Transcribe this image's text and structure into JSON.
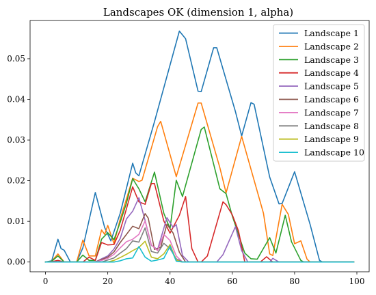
{
  "chart_data": {
    "type": "line",
    "title": "Landscapes OK (dimension 1, alpha)",
    "xlabel": "",
    "ylabel": "",
    "xlim": [
      -4.95,
      103.95
    ],
    "ylim": [
      -0.0024,
      0.0594
    ],
    "x_ticks": [
      0,
      20,
      40,
      60,
      80,
      100
    ],
    "x_tick_labels": [
      "0",
      "20",
      "40",
      "60",
      "80",
      "100"
    ],
    "y_ticks": [
      0,
      0.01,
      0.02,
      0.03,
      0.04,
      0.05
    ],
    "y_tick_labels": [
      "0.00",
      "0.01",
      "0.02",
      "0.03",
      "0.04",
      "0.05"
    ],
    "grid": false,
    "legend_position": "top-right",
    "series": [
      {
        "name": "Landscape 1",
        "color": "#1f77b4",
        "points": [
          [
            0,
            0
          ],
          [
            2,
            0.0003
          ],
          [
            4,
            0.0056
          ],
          [
            5,
            0.0033
          ],
          [
            6,
            0.0029
          ],
          [
            8,
            0
          ],
          [
            10,
            0
          ],
          [
            12,
            0.0035
          ],
          [
            16,
            0.0171
          ],
          [
            19,
            0.0085
          ],
          [
            21,
            0.0052
          ],
          [
            24,
            0.012
          ],
          [
            28,
            0.0243
          ],
          [
            29,
            0.0219
          ],
          [
            30,
            0.0212
          ],
          [
            35,
            0.0345
          ],
          [
            43,
            0.0568
          ],
          [
            45,
            0.0549
          ],
          [
            49,
            0.042
          ],
          [
            50,
            0.0419
          ],
          [
            54,
            0.0527
          ],
          [
            55,
            0.0527
          ],
          [
            61,
            0.037
          ],
          [
            63,
            0.031
          ],
          [
            66,
            0.0392
          ],
          [
            67,
            0.0388
          ],
          [
            72,
            0.0209
          ],
          [
            75,
            0.0143
          ],
          [
            76,
            0.0144
          ],
          [
            80,
            0.0222
          ],
          [
            85,
            0.0092
          ],
          [
            88,
            0.0004
          ],
          [
            89,
            0
          ],
          [
            99,
            0
          ]
        ]
      },
      {
        "name": "Landscape 2",
        "color": "#ff7f0e",
        "points": [
          [
            0,
            0
          ],
          [
            2,
            0.0002
          ],
          [
            4,
            0.002
          ],
          [
            6,
            0
          ],
          [
            10,
            0
          ],
          [
            12,
            0.0054
          ],
          [
            14,
            0.0015
          ],
          [
            16,
            0.0015
          ],
          [
            18,
            0.0079
          ],
          [
            19,
            0.0068
          ],
          [
            20,
            0.009
          ],
          [
            22,
            0.0045
          ],
          [
            24,
            0.0106
          ],
          [
            26,
            0.0155
          ],
          [
            28,
            0.0206
          ],
          [
            30,
            0.0198
          ],
          [
            31,
            0.0201
          ],
          [
            36,
            0.0333
          ],
          [
            37,
            0.0346
          ],
          [
            42,
            0.021
          ],
          [
            49,
            0.0391
          ],
          [
            50,
            0.0391
          ],
          [
            56,
            0.0232
          ],
          [
            58,
            0.017
          ],
          [
            63,
            0.0309
          ],
          [
            70,
            0.012
          ],
          [
            72,
            0.002
          ],
          [
            73,
            0.0016
          ],
          [
            76,
            0.0142
          ],
          [
            78,
            0.0117
          ],
          [
            80,
            0.0045
          ],
          [
            82,
            0.0052
          ],
          [
            84,
            0.0007
          ],
          [
            85,
            0
          ],
          [
            99,
            0
          ]
        ]
      },
      {
        "name": "Landscape 3",
        "color": "#2ca02c",
        "points": [
          [
            0,
            0
          ],
          [
            2,
            0.0002
          ],
          [
            4,
            0.0015
          ],
          [
            6,
            0
          ],
          [
            10,
            0
          ],
          [
            12,
            0.0017
          ],
          [
            14,
            0.0004
          ],
          [
            16,
            0.0004
          ],
          [
            18,
            0.0056
          ],
          [
            20,
            0.0072
          ],
          [
            22,
            0.0055
          ],
          [
            24,
            0.0098
          ],
          [
            26,
            0.0145
          ],
          [
            28,
            0.0205
          ],
          [
            30,
            0.018
          ],
          [
            32,
            0.0148
          ],
          [
            35,
            0.0221
          ],
          [
            38,
            0.012
          ],
          [
            40,
            0.0082
          ],
          [
            42,
            0.0201
          ],
          [
            44,
            0.0161
          ],
          [
            50,
            0.0326
          ],
          [
            51,
            0.0332
          ],
          [
            56,
            0.018
          ],
          [
            58,
            0.0168
          ],
          [
            60,
            0.0113
          ],
          [
            64,
            0.0022
          ],
          [
            66,
            0.0008
          ],
          [
            68,
            0.0007
          ],
          [
            72,
            0.006
          ],
          [
            74,
            0.0022
          ],
          [
            77,
            0.0115
          ],
          [
            79,
            0.005
          ],
          [
            82,
            0.0004
          ],
          [
            83,
            0
          ],
          [
            99,
            0
          ]
        ]
      },
      {
        "name": "Landscape 4",
        "color": "#d62728",
        "points": [
          [
            0,
            0
          ],
          [
            2,
            0.0001
          ],
          [
            4,
            0.0004
          ],
          [
            6,
            0
          ],
          [
            12,
            0
          ],
          [
            14,
            0.0012
          ],
          [
            16,
            0.0004
          ],
          [
            18,
            0.0048
          ],
          [
            20,
            0.0042
          ],
          [
            22,
            0.0043
          ],
          [
            24,
            0.0078
          ],
          [
            26,
            0.0131
          ],
          [
            28,
            0.0185
          ],
          [
            30,
            0.0148
          ],
          [
            32,
            0.0142
          ],
          [
            34,
            0.0193
          ],
          [
            35,
            0.0193
          ],
          [
            38,
            0.0101
          ],
          [
            40,
            0.0071
          ],
          [
            43,
            0.0115
          ],
          [
            45,
            0.0161
          ],
          [
            47,
            0.0033
          ],
          [
            49,
            0
          ],
          [
            50,
            0
          ],
          [
            52,
            0.0015
          ],
          [
            57,
            0.0148
          ],
          [
            58,
            0.0141
          ],
          [
            60,
            0.0116
          ],
          [
            62,
            0.0076
          ],
          [
            64,
            0
          ],
          [
            69,
            0
          ],
          [
            71,
            0.0013
          ],
          [
            73,
            0
          ],
          [
            99,
            0
          ]
        ]
      },
      {
        "name": "Landscape 5",
        "color": "#9467bd",
        "points": [
          [
            0,
            0
          ],
          [
            4,
            0.0001
          ],
          [
            6,
            0
          ],
          [
            16,
            0
          ],
          [
            18,
            0.0008
          ],
          [
            20,
            0.0015
          ],
          [
            22,
            0.0032
          ],
          [
            24,
            0.0058
          ],
          [
            26,
            0.0106
          ],
          [
            28,
            0.0125
          ],
          [
            30,
            0.0158
          ],
          [
            32,
            0.0102
          ],
          [
            34,
            0.0041
          ],
          [
            36,
            0.0031
          ],
          [
            39,
            0.0109
          ],
          [
            41,
            0.0085
          ],
          [
            42,
            0.0092
          ],
          [
            44,
            0.0016
          ],
          [
            46,
            0
          ],
          [
            55,
            0
          ],
          [
            57,
            0.0018
          ],
          [
            61,
            0.0087
          ],
          [
            63,
            0.0028
          ],
          [
            65,
            0
          ],
          [
            72,
            0
          ],
          [
            73,
            0.0009
          ],
          [
            75,
            0
          ],
          [
            99,
            0
          ]
        ]
      },
      {
        "name": "Landscape 6",
        "color": "#8c564b",
        "points": [
          [
            0,
            0
          ],
          [
            16,
            0
          ],
          [
            18,
            0.0006
          ],
          [
            20,
            0.0012
          ],
          [
            22,
            0.0025
          ],
          [
            24,
            0.0048
          ],
          [
            26,
            0.0068
          ],
          [
            28,
            0.0088
          ],
          [
            30,
            0.0082
          ],
          [
            32,
            0.0119
          ],
          [
            33,
            0.0108
          ],
          [
            35,
            0.0031
          ],
          [
            37,
            0.0036
          ],
          [
            39,
            0.0093
          ],
          [
            41,
            0.0071
          ],
          [
            43,
            0.0024
          ],
          [
            45,
            0
          ],
          [
            99,
            0
          ]
        ]
      },
      {
        "name": "Landscape 7",
        "color": "#e377c2",
        "points": [
          [
            0,
            0
          ],
          [
            16,
            0
          ],
          [
            18,
            0.0004
          ],
          [
            20,
            0.0009
          ],
          [
            22,
            0.0019
          ],
          [
            24,
            0.0035
          ],
          [
            26,
            0.005
          ],
          [
            28,
            0.0056
          ],
          [
            30,
            0.0068
          ],
          [
            32,
            0.0101
          ],
          [
            34,
            0.0042
          ],
          [
            36,
            0.0028
          ],
          [
            38,
            0.0068
          ],
          [
            40,
            0.0053
          ],
          [
            42,
            0.0015
          ],
          [
            44,
            0
          ],
          [
            99,
            0
          ]
        ]
      },
      {
        "name": "Landscape 8",
        "color": "#7f7f7f",
        "points": [
          [
            0,
            0
          ],
          [
            18,
            0
          ],
          [
            20,
            0.0005
          ],
          [
            22,
            0.001
          ],
          [
            24,
            0.0022
          ],
          [
            26,
            0.0033
          ],
          [
            28,
            0.0052
          ],
          [
            30,
            0.0049
          ],
          [
            32,
            0.0084
          ],
          [
            34,
            0.0026
          ],
          [
            36,
            0.0022
          ],
          [
            38,
            0.0046
          ],
          [
            40,
            0.0033
          ],
          [
            42,
            0.0008
          ],
          [
            44,
            0
          ],
          [
            99,
            0
          ]
        ]
      },
      {
        "name": "Landscape 9",
        "color": "#bcbd22",
        "points": [
          [
            0,
            0
          ],
          [
            20,
            0
          ],
          [
            22,
            0.0004
          ],
          [
            24,
            0.0011
          ],
          [
            26,
            0.0019
          ],
          [
            28,
            0.0028
          ],
          [
            30,
            0.0036
          ],
          [
            32,
            0.0051
          ],
          [
            34,
            0.0012
          ],
          [
            36,
            0.0008
          ],
          [
            38,
            0.002
          ],
          [
            40,
            0.0043
          ],
          [
            42,
            0.0004
          ],
          [
            44,
            0
          ],
          [
            99,
            0
          ]
        ]
      },
      {
        "name": "Landscape 10",
        "color": "#17becf",
        "points": [
          [
            0,
            0
          ],
          [
            22,
            0
          ],
          [
            24,
            0.0003
          ],
          [
            26,
            0.0008
          ],
          [
            28,
            0.001
          ],
          [
            30,
            0.0038
          ],
          [
            32,
            0.0012
          ],
          [
            34,
            0.0002
          ],
          [
            36,
            0.0005
          ],
          [
            38,
            0.0009
          ],
          [
            40,
            0.0039
          ],
          [
            42,
            0.0002
          ],
          [
            44,
            0
          ],
          [
            99,
            0
          ]
        ]
      }
    ]
  }
}
